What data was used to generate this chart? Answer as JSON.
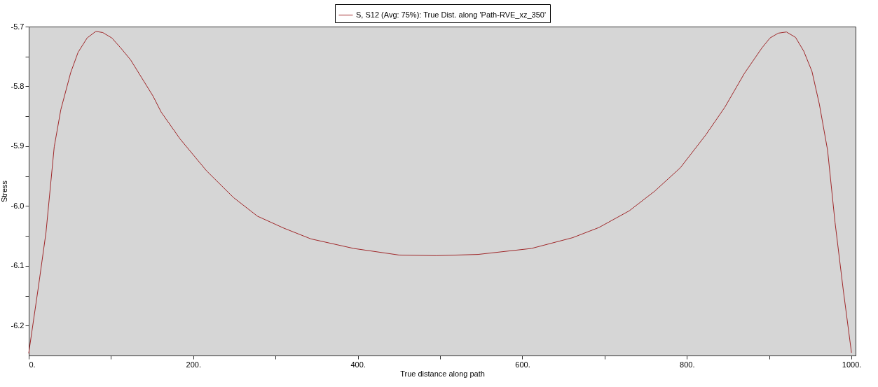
{
  "chart_data": {
    "type": "line",
    "xlabel": "True distance along path",
    "ylabel": "Stress",
    "x": [
      0,
      12,
      21,
      31,
      39,
      51,
      60,
      71,
      81.5,
      90,
      101,
      112,
      124,
      151,
      161,
      184,
      216,
      249,
      278,
      310,
      343,
      395,
      450,
      495,
      546,
      611,
      661,
      693,
      730,
      761,
      792,
      823,
      846,
      870,
      891,
      901,
      911,
      921,
      932,
      942,
      952,
      961,
      971,
      980,
      990,
      1000
    ],
    "series": [
      {
        "name": "S, S12 (Avg: 75%): True Dist. along 'Path-RVE_xz_350'",
        "color": "#a0282a",
        "values": [
          -6.246,
          -6.133,
          -6.044,
          -5.901,
          -5.839,
          -5.777,
          -5.743,
          -5.719,
          -5.708,
          -5.71,
          -5.719,
          -5.736,
          -5.756,
          -5.816,
          -5.843,
          -5.888,
          -5.941,
          -5.986,
          -6.017,
          -6.037,
          -6.055,
          -6.071,
          -6.082,
          -6.083,
          -6.081,
          -6.071,
          -6.053,
          -6.036,
          -6.008,
          -5.975,
          -5.936,
          -5.881,
          -5.835,
          -5.778,
          -5.736,
          -5.719,
          -5.711,
          -5.709,
          -5.718,
          -5.741,
          -5.775,
          -5.83,
          -5.907,
          -6.027,
          -6.14,
          -6.245
        ]
      }
    ],
    "xlim": [
      0,
      1005
    ],
    "ylim": [
      -6.25,
      -5.7
    ],
    "xticks": [
      {
        "value": 0,
        "label": "0."
      },
      {
        "value": 100,
        "label": null
      },
      {
        "value": 200,
        "label": "200."
      },
      {
        "value": 300,
        "label": null
      },
      {
        "value": 400,
        "label": "400."
      },
      {
        "value": 500,
        "label": null
      },
      {
        "value": 600,
        "label": "600."
      },
      {
        "value": 700,
        "label": null
      },
      {
        "value": 800,
        "label": "800."
      },
      {
        "value": 900,
        "label": null
      },
      {
        "value": 1000,
        "label": "1000."
      }
    ],
    "yticks": [
      -5.7,
      {
        "value": -5.75,
        "label": null
      },
      -5.8,
      {
        "value": -5.85,
        "label": null
      },
      -5.9,
      {
        "value": -5.95,
        "label": null
      },
      {
        "value": -6.0,
        "label": "-6.0"
      },
      {
        "value": -6.05,
        "label": null
      },
      -6.1,
      {
        "value": -6.15,
        "label": null
      },
      -6.2
    ],
    "legend": "top",
    "grid": false,
    "line_style": "solid",
    "marker": "none"
  }
}
